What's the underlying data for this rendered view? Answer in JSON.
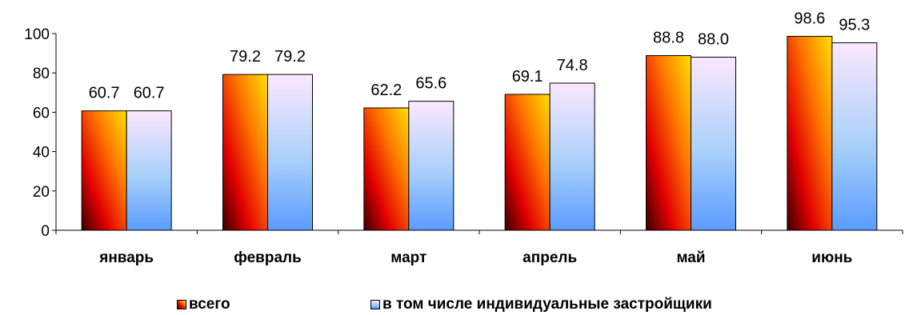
{
  "chart_data": {
    "type": "bar",
    "categories": [
      "январь",
      "февраль",
      "март",
      "апрель",
      "май",
      "июнь"
    ],
    "series": [
      {
        "name": "всего",
        "values": [
          60.7,
          79.2,
          62.2,
          69.1,
          88.8,
          98.6
        ],
        "color": "#ff6600"
      },
      {
        "name": "в том числе индивидуальные застройщики",
        "values": [
          60.7,
          79.2,
          65.6,
          74.8,
          88.0,
          95.3
        ],
        "color": "#99ccff"
      }
    ],
    "title": "",
    "xlabel": "",
    "ylabel": "",
    "ylim": [
      0,
      100
    ],
    "yticks": [
      "0",
      "20",
      "40",
      "60",
      "80",
      "100"
    ],
    "grid": false,
    "legend_position": "bottom"
  }
}
